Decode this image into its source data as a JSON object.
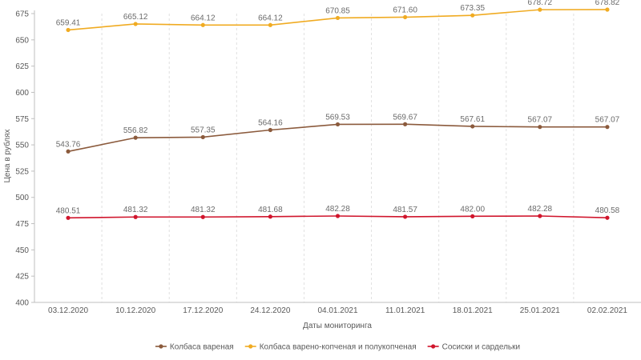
{
  "chart_data": {
    "type": "line",
    "title": "",
    "xlabel": "Даты мониторинга",
    "ylabel": "Цена в рублях",
    "ylim": [
      400,
      675
    ],
    "y_tick_step": 25,
    "grid": {
      "horizontal": false,
      "vertical": true,
      "style": "dashed"
    },
    "legend_position": "bottom",
    "categories": [
      "03.12.2020",
      "10.12.2020",
      "17.12.2020",
      "24.12.2020",
      "04.01.2021",
      "11.01.2021",
      "18.01.2021",
      "25.01.2021",
      "02.02.2021"
    ],
    "series": [
      {
        "name": "Колбаса вареная",
        "color": "#8b5a3c",
        "values": [
          543.76,
          556.82,
          557.35,
          564.16,
          569.53,
          569.67,
          567.61,
          567.07,
          567.07
        ],
        "labels": [
          "543.76",
          "556.82",
          "557.35",
          "564.16",
          "569.53",
          "569.67",
          "567.61",
          "567.07",
          "567.07"
        ]
      },
      {
        "name": "Колбаса варено-копченая и полукопченая",
        "color": "#f0ab22",
        "values": [
          659.41,
          665.12,
          664.12,
          664.12,
          670.85,
          671.6,
          673.35,
          678.72,
          678.82
        ],
        "labels": [
          "659.41",
          "665.12",
          "664.12",
          "664.12",
          "670.85",
          "671.60",
          "673.35",
          "678.72",
          "678.82"
        ]
      },
      {
        "name": "Сосиски и сардельки",
        "color": "#d0152c",
        "values": [
          480.51,
          481.32,
          481.32,
          481.68,
          482.28,
          481.57,
          482.0,
          482.28,
          480.58
        ],
        "labels": [
          "480.51",
          "481.32",
          "481.32",
          "481.68",
          "482.28",
          "481.57",
          "482.00",
          "482.28",
          "480.58"
        ]
      }
    ]
  }
}
